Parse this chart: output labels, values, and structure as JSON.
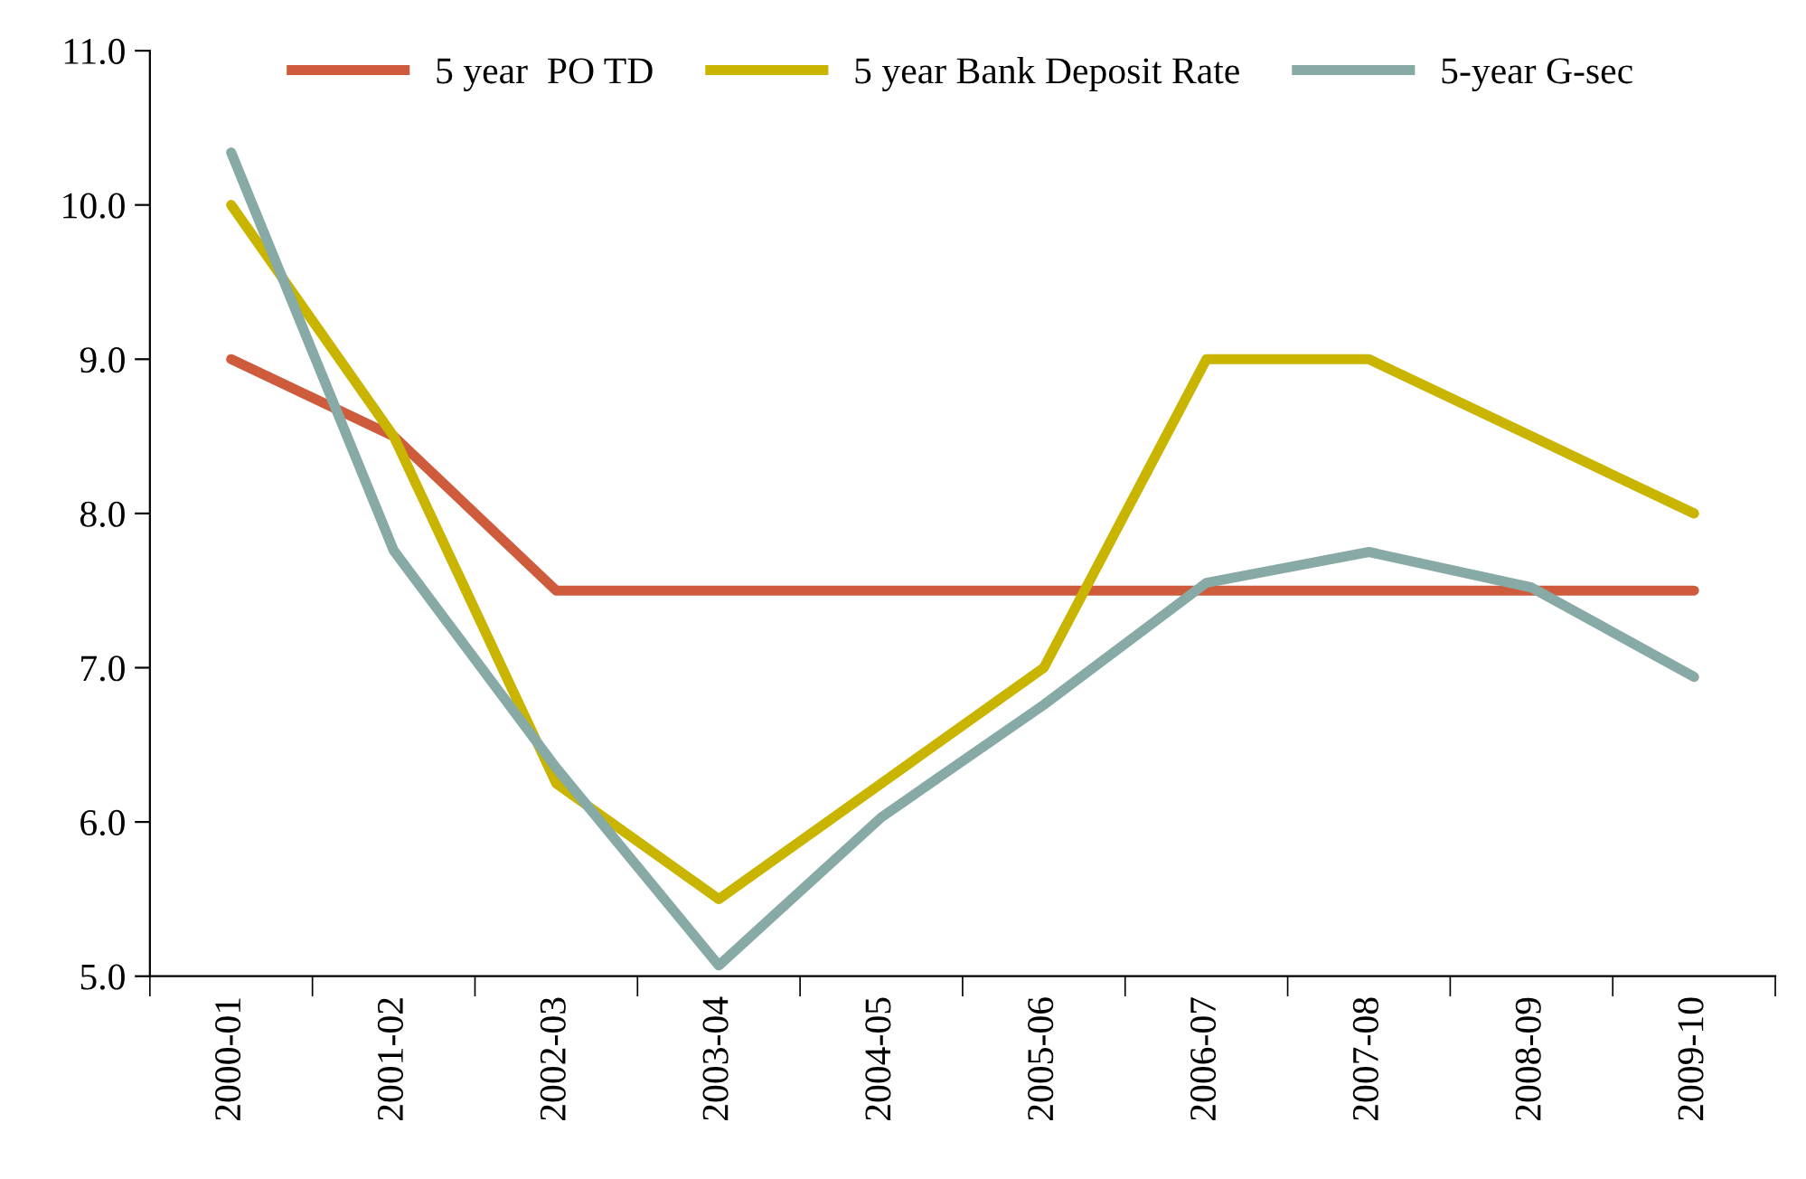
{
  "chart_data": {
    "type": "line",
    "categories": [
      "2000-01",
      "2001-02",
      "2002-03",
      "2003-04",
      "2004-05",
      "2005-06",
      "2006-07",
      "2007-08",
      "2008-09",
      "2009-10"
    ],
    "series": [
      {
        "name": "5 year  PO TD",
        "color": "#cf5b3d",
        "values": [
          9.0,
          8.5,
          7.5,
          7.5,
          7.5,
          7.5,
          7.5,
          7.5,
          7.5,
          7.5
        ]
      },
      {
        "name": "5 year Bank Deposit Rate",
        "color": "#c9b500",
        "values": [
          10.0,
          8.5,
          6.25,
          5.5,
          6.25,
          7.0,
          9.0,
          9.0,
          8.5,
          8.0
        ]
      },
      {
        "name": "5-year G-sec",
        "color": "#87aaa6",
        "values": [
          10.34,
          7.76,
          6.35,
          5.07,
          6.03,
          6.76,
          7.55,
          7.75,
          7.52,
          6.94
        ]
      }
    ],
    "ylim": [
      5.0,
      11.0
    ],
    "yticks": [
      {
        "value": 5,
        "label": "5.0"
      },
      {
        "value": 6,
        "label": "6.0"
      },
      {
        "value": 7,
        "label": "7.0"
      },
      {
        "value": 8,
        "label": "8.0"
      },
      {
        "value": 9,
        "label": "9.0"
      },
      {
        "value": 10,
        "label": "10.0"
      },
      {
        "value": 11,
        "label": "11.0"
      }
    ],
    "grid": false,
    "legend": "top",
    "marker": "none",
    "line_style": "solid"
  }
}
